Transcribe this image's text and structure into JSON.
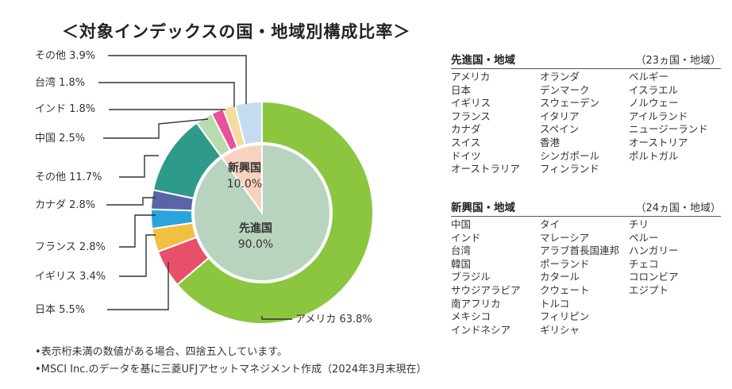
{
  "title": "＜対象インデックスの国・地域別構成比率＞",
  "chart_data": {
    "type": "pie",
    "segments": [
      {
        "label": "アメリカ",
        "value": 63.8,
        "color": "#8cc63f"
      },
      {
        "label": "日本",
        "value": 5.5,
        "color": "#e8506a"
      },
      {
        "label": "イギリス",
        "value": 3.4,
        "color": "#f0c040"
      },
      {
        "label": "フランス",
        "value": 2.8,
        "color": "#2aa5dc"
      },
      {
        "label": "カナダ",
        "value": 2.8,
        "color": "#5a64a6"
      },
      {
        "label": "その他",
        "value": 11.7,
        "color": "#2e9a8a"
      },
      {
        "label": "中国",
        "value": 2.5,
        "color": "#b8dcae"
      },
      {
        "label": "インド",
        "value": 1.8,
        "color": "#e8529a"
      },
      {
        "label": "台湾",
        "value": 1.8,
        "color": "#f5dc9e"
      },
      {
        "label": "その他",
        "value": 3.9,
        "color": "#c4dcf0"
      }
    ],
    "inner": [
      {
        "label": "先進国",
        "value": 90.0,
        "color": "#b8d4bf"
      },
      {
        "label": "新興国",
        "value": 10.0,
        "color": "#f7d2be"
      }
    ],
    "labels": [
      "アメリカ 63.8%",
      "日本 5.5%",
      "イギリス 3.4%",
      "フランス 2.8%",
      "カナダ 2.8%",
      "その他 11.7%",
      "中国 2.5%",
      "インド 1.8%",
      "台湾 1.8%",
      "その他 3.9%"
    ],
    "inner_labels": [
      {
        "name": "先進国",
        "value": "90.0%"
      },
      {
        "name": "新興国",
        "value": "10.0%"
      }
    ]
  },
  "developed": {
    "title": "先進国・地域",
    "count": "（23ヵ国・地域）",
    "countries": [
      "アメリカ",
      "日本",
      "イギリス",
      "フランス",
      "カナダ",
      "スイス",
      "ドイツ",
      "オーストラリア",
      "オランダ",
      "デンマーク",
      "スウェーデン",
      "イタリア",
      "スペイン",
      "香港",
      "シンガポール",
      "フィンランド",
      "ベルギー",
      "イスラエル",
      "ノルウェー",
      "アイルランド",
      "ニュージーランド",
      "オーストリア",
      "ポルトガル"
    ]
  },
  "emerging": {
    "title": "新興国・地域",
    "count": "（24ヵ国・地域）",
    "countries": [
      "中国",
      "インド",
      "台湾",
      "韓国",
      "ブラジル",
      "サウジアラビア",
      "南アフリカ",
      "メキシコ",
      "インドネシア",
      "タイ",
      "マレーシア",
      "アラブ首長国連邦",
      "ポーランド",
      "カタール",
      "クウェート",
      "トルコ",
      "フィリピン",
      "ギリシャ",
      "チリ",
      "ペルー",
      "ハンガリー",
      "チェコ",
      "コロンビア",
      "エジプト"
    ]
  },
  "notes": [
    "•表示桁未満の数値がある場合、四捨五入しています。",
    "•MSCI Inc.のデータを基に三菱UFJアセットマネジメント作成（2024年3月末現在）"
  ]
}
